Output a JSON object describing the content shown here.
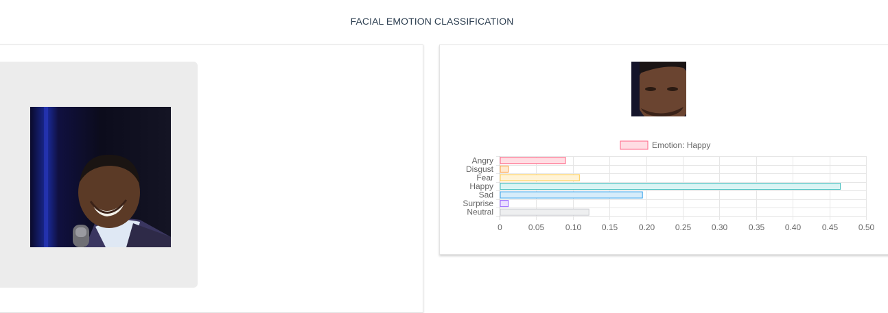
{
  "header": {
    "title": "FACIAL EMOTION CLASSIFICATION"
  },
  "upload": {
    "image_alt": "uploaded photo of a laughing man holding a microphone"
  },
  "result": {
    "face_alt": "cropped detected face",
    "chart_data": {
      "type": "bar",
      "orientation": "horizontal",
      "title": "",
      "xlabel": "",
      "ylabel": "",
      "legend": {
        "label": "Emotion: Happy",
        "placement": "top-center"
      },
      "categories": [
        "Angry",
        "Disgust",
        "Fear",
        "Happy",
        "Sad",
        "Surprise",
        "Neutral"
      ],
      "series": [
        {
          "name": "Emotion: Happy",
          "values": [
            0.089,
            0.011,
            0.108,
            0.464,
            0.194,
            0.011,
            0.121
          ]
        }
      ],
      "colors": {
        "fill": [
          "#ffdde3",
          "#ffe9cf",
          "#fff3d6",
          "#daf4f4",
          "#d6ecfa",
          "#eadfff",
          "#eeeff0"
        ],
        "border": [
          "#ff6384",
          "#ff9f40",
          "#ffcd56",
          "#4bc0c0",
          "#36a2eb",
          "#9966ff",
          "#c9cbcf"
        ]
      },
      "xlim": [
        0,
        0.5
      ],
      "xticks": [
        "0",
        "0.05",
        "0.10",
        "0.15",
        "0.20",
        "0.25",
        "0.30",
        "0.35",
        "0.40",
        "0.45",
        "0.50"
      ],
      "grid": true
    }
  }
}
